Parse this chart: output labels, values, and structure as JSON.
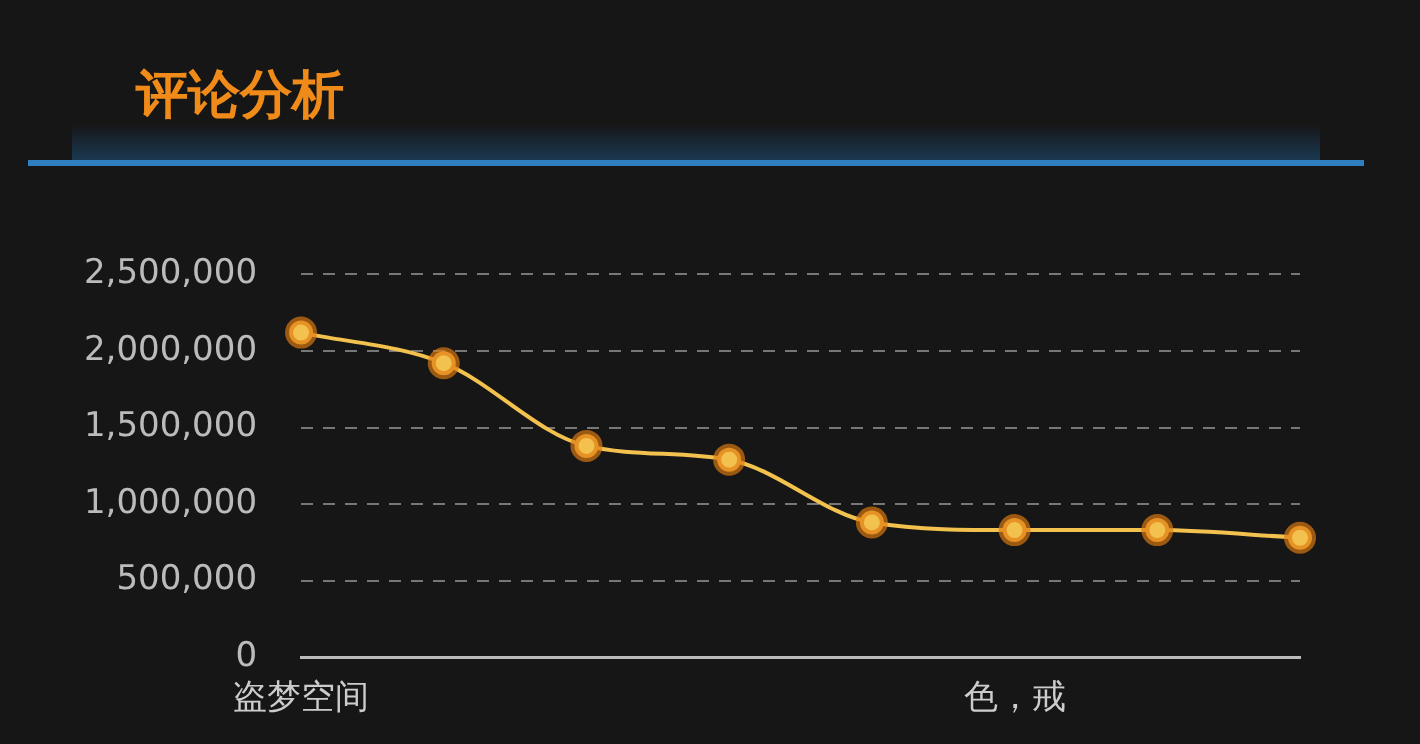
{
  "chart_data": {
    "type": "line",
    "title": "评论分析",
    "categories": [
      "盗梦空间",
      null,
      null,
      null,
      null,
      "色，戒",
      null,
      null
    ],
    "series": [
      {
        "color": "#f2c14e",
        "values": [
          2120000,
          1920000,
          1380000,
          1290000,
          880000,
          830000,
          830000,
          780000
        ]
      }
    ],
    "ylim": [
      0,
      2500000
    ],
    "yticks": [
      {
        "value": 0,
        "label": "0"
      },
      {
        "value": 500000,
        "label": "500,000"
      },
      {
        "value": 1000000,
        "label": "1,000,000"
      },
      {
        "value": 1500000,
        "label": "1,500,000"
      },
      {
        "value": 2000000,
        "label": "2,000,000"
      },
      {
        "value": 2500000,
        "label": "2,500,000"
      }
    ],
    "grid": "y",
    "legend": false,
    "marker": "circle",
    "line_style": "solid"
  }
}
